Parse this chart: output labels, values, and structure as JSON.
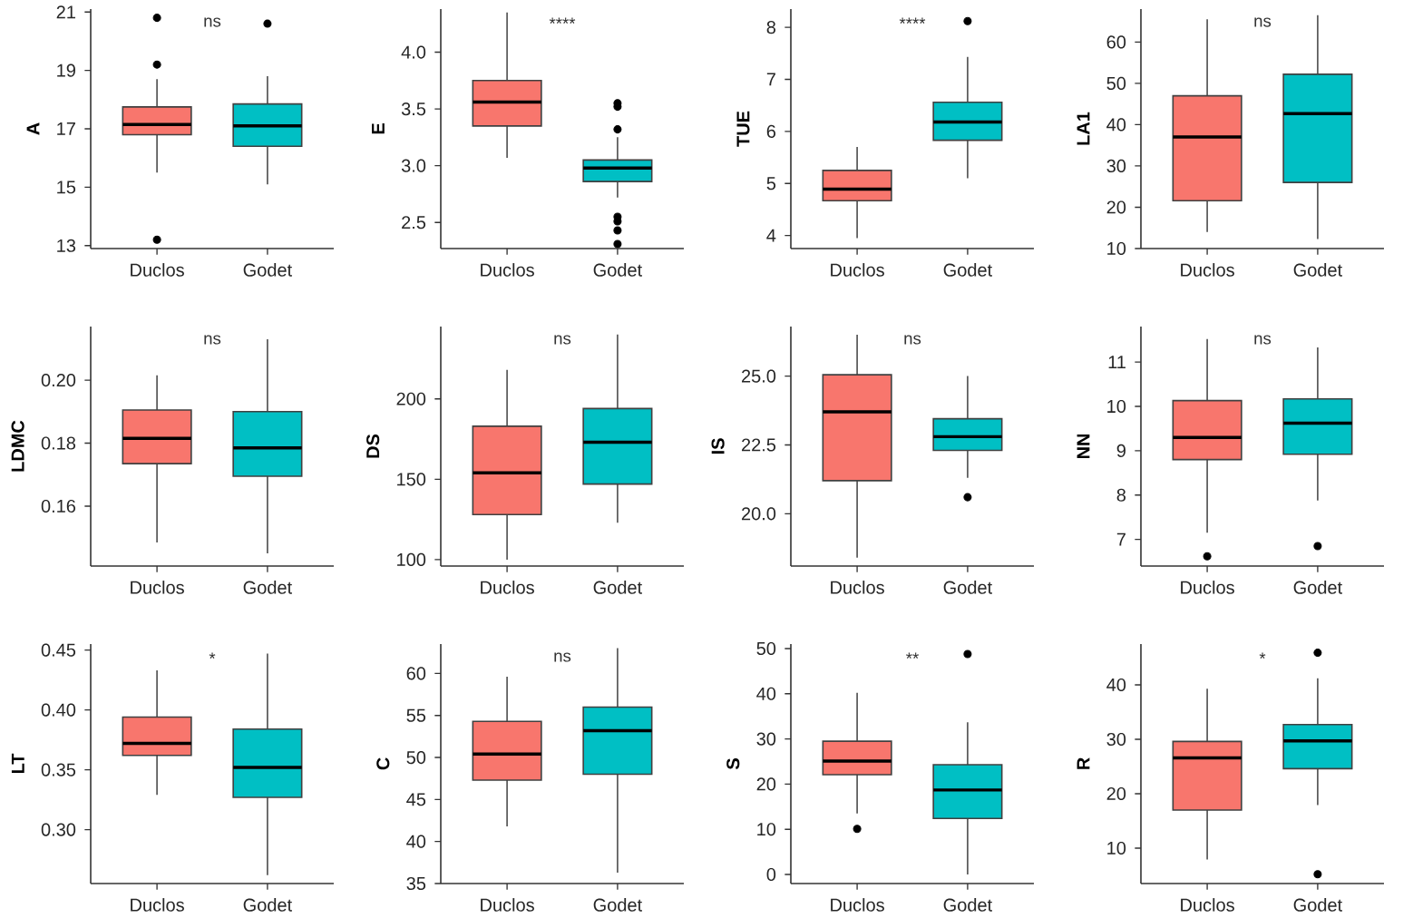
{
  "chart_data": [
    {
      "type": "box",
      "categories": [
        "Duclos",
        "Godet"
      ],
      "ylabel": "A",
      "ylim": [
        12.9,
        21.1
      ],
      "yticks": [
        13,
        15,
        17,
        19,
        21
      ],
      "colors": [
        "#f8766d",
        "#00bfc4"
      ],
      "annotations": [
        "ns"
      ],
      "boxes": [
        {
          "low": 15.5,
          "q1": 16.8,
          "median": 17.15,
          "q3": 17.75,
          "high": 18.7,
          "outliers": [
            20.8,
            19.2,
            13.2
          ]
        },
        {
          "low": 15.1,
          "q1": 16.4,
          "median": 17.1,
          "q3": 17.85,
          "high": 18.8,
          "outliers": [
            20.6
          ]
        }
      ]
    },
    {
      "type": "box",
      "categories": [
        "Duclos",
        "Godet"
      ],
      "ylabel": "E",
      "ylim": [
        2.27,
        4.38
      ],
      "yticks": [
        2.5,
        {
          "value": 3,
          "label": "3.0"
        },
        3.5,
        {
          "value": 4,
          "label": "4.0"
        }
      ],
      "colors": [
        "#f8766d",
        "#00bfc4"
      ],
      "annotations": [
        "****"
      ],
      "boxes": [
        {
          "low": 3.07,
          "q1": 3.35,
          "median": 3.56,
          "q3": 3.75,
          "high": 4.35
        },
        {
          "low": 2.72,
          "q1": 2.86,
          "median": 2.98,
          "q3": 3.05,
          "high": 3.25,
          "outliers": [
            3.55,
            3.52,
            3.32,
            2.55,
            2.51,
            2.43,
            2.31
          ]
        }
      ]
    },
    {
      "type": "box",
      "categories": [
        "Duclos",
        "Godet"
      ],
      "ylabel": "TUE",
      "ylim": [
        3.75,
        8.35
      ],
      "yticks": [
        4,
        5,
        6,
        7,
        8
      ],
      "colors": [
        "#f8766d",
        "#00bfc4"
      ],
      "annotations": [
        "****"
      ],
      "boxes": [
        {
          "low": 3.95,
          "q1": 4.67,
          "median": 4.89,
          "q3": 5.25,
          "high": 5.7
        },
        {
          "low": 5.1,
          "q1": 5.83,
          "median": 6.18,
          "q3": 6.56,
          "high": 7.43,
          "outliers": [
            8.12
          ]
        }
      ]
    },
    {
      "type": "box",
      "categories": [
        "Duclos",
        "Godet"
      ],
      "ylabel": "LA1",
      "ylim": [
        10,
        68
      ],
      "yticks": [
        10,
        20,
        30,
        40,
        50,
        60
      ],
      "colors": [
        "#f8766d",
        "#00bfc4"
      ],
      "annotations": [
        "ns"
      ],
      "boxes": [
        {
          "low": 14,
          "q1": 21.6,
          "median": 37,
          "q3": 47,
          "high": 65.5
        },
        {
          "low": 12.3,
          "q1": 26,
          "median": 42.7,
          "q3": 52.2,
          "high": 66.5
        }
      ]
    },
    {
      "type": "box",
      "categories": [
        "Duclos",
        "Godet"
      ],
      "ylabel": "LDMC",
      "ylim": [
        0.141,
        0.217
      ],
      "yticks": [
        0.16,
        0.18,
        {
          "value": 0.2,
          "label": "0.20"
        }
      ],
      "colors": [
        "#f8766d",
        "#00bfc4"
      ],
      "annotations": [
        "ns"
      ],
      "boxes": [
        {
          "low": 0.1485,
          "q1": 0.1735,
          "median": 0.1815,
          "q3": 0.1905,
          "high": 0.2015
        },
        {
          "low": 0.145,
          "q1": 0.1695,
          "median": 0.1785,
          "q3": 0.19,
          "high": 0.213
        }
      ]
    },
    {
      "type": "box",
      "categories": [
        "Duclos",
        "Godet"
      ],
      "ylabel": "DS",
      "ylim": [
        96,
        245
      ],
      "yticks": [
        100,
        150,
        200
      ],
      "colors": [
        "#f8766d",
        "#00bfc4"
      ],
      "annotations": [
        "ns"
      ],
      "boxes": [
        {
          "low": 100,
          "q1": 128,
          "median": 154,
          "q3": 183,
          "high": 218
        },
        {
          "low": 123,
          "q1": 147,
          "median": 173,
          "q3": 194,
          "high": 240
        }
      ]
    },
    {
      "type": "box",
      "categories": [
        "Duclos",
        "Godet"
      ],
      "ylabel": "IS",
      "ylim": [
        18.1,
        26.8
      ],
      "yticks": [
        {
          "value": 20,
          "label": "20.0"
        },
        22.5,
        {
          "value": 25,
          "label": "25.0"
        }
      ],
      "colors": [
        "#f8766d",
        "#00bfc4"
      ],
      "annotations": [
        "ns"
      ],
      "boxes": [
        {
          "low": 18.4,
          "q1": 21.2,
          "median": 23.7,
          "q3": 25.05,
          "high": 26.5
        },
        {
          "low": 21.3,
          "q1": 22.3,
          "median": 22.8,
          "q3": 23.45,
          "high": 25.0,
          "outliers": [
            20.6
          ]
        }
      ]
    },
    {
      "type": "box",
      "categories": [
        "Duclos",
        "Godet"
      ],
      "ylabel": "NN",
      "ylim": [
        6.4,
        11.8
      ],
      "yticks": [
        7,
        8,
        9,
        10,
        11
      ],
      "colors": [
        "#f8766d",
        "#00bfc4"
      ],
      "annotations": [
        "ns"
      ],
      "boxes": [
        {
          "low": 7.15,
          "q1": 8.8,
          "median": 9.3,
          "q3": 10.13,
          "high": 11.52,
          "outliers": [
            6.62
          ]
        },
        {
          "low": 7.88,
          "q1": 8.92,
          "median": 9.62,
          "q3": 10.17,
          "high": 11.33,
          "outliers": [
            6.85
          ]
        }
      ]
    },
    {
      "type": "box",
      "categories": [
        "Duclos",
        "Godet"
      ],
      "ylabel": "LT",
      "ylim": [
        0.255,
        0.455
      ],
      "yticks": [
        {
          "value": 0.3,
          "label": "0.30"
        },
        0.35,
        {
          "value": 0.4,
          "label": "0.40"
        },
        0.45
      ],
      "colors": [
        "#f8766d",
        "#00bfc4"
      ],
      "annotations": [
        "*"
      ],
      "boxes": [
        {
          "low": 0.329,
          "q1": 0.362,
          "median": 0.372,
          "q3": 0.394,
          "high": 0.433
        },
        {
          "low": 0.262,
          "q1": 0.327,
          "median": 0.352,
          "q3": 0.384,
          "high": 0.447
        }
      ]
    },
    {
      "type": "box",
      "categories": [
        "Duclos",
        "Godet"
      ],
      "ylabel": "C",
      "ylim": [
        35,
        63.5
      ],
      "yticks": [
        35,
        40,
        45,
        50,
        55,
        60
      ],
      "colors": [
        "#f8766d",
        "#00bfc4"
      ],
      "annotations": [
        "ns"
      ],
      "boxes": [
        {
          "low": 41.8,
          "q1": 47.3,
          "median": 50.4,
          "q3": 54.3,
          "high": 59.6
        },
        {
          "low": 36.3,
          "q1": 48,
          "median": 53.2,
          "q3": 56,
          "high": 63
        }
      ]
    },
    {
      "type": "box",
      "categories": [
        "Duclos",
        "Godet"
      ],
      "ylabel": "S",
      "ylim": [
        -2,
        51
      ],
      "yticks": [
        0,
        10,
        20,
        30,
        40,
        50
      ],
      "colors": [
        "#f8766d",
        "#00bfc4"
      ],
      "annotations": [
        "**"
      ],
      "boxes": [
        {
          "low": 13.5,
          "q1": 22.1,
          "median": 25.1,
          "q3": 29.5,
          "high": 40.2,
          "outliers": [
            10.1
          ]
        },
        {
          "low": 0,
          "q1": 12.4,
          "median": 18.7,
          "q3": 24.3,
          "high": 33.7,
          "outliers": [
            48.8
          ]
        }
      ]
    },
    {
      "type": "box",
      "categories": [
        "Duclos",
        "Godet"
      ],
      "ylabel": "R",
      "ylim": [
        3.5,
        47.5
      ],
      "yticks": [
        10,
        20,
        30,
        40
      ],
      "colors": [
        "#f8766d",
        "#00bfc4"
      ],
      "annotations": [
        "*"
      ],
      "boxes": [
        {
          "low": 7.9,
          "q1": 17,
          "median": 26.6,
          "q3": 29.6,
          "high": 39.3
        },
        {
          "low": 17.9,
          "q1": 24.6,
          "median": 29.7,
          "q3": 32.7,
          "high": 41.2,
          "outliers": [
            45.9,
            5.2
          ]
        }
      ]
    }
  ]
}
